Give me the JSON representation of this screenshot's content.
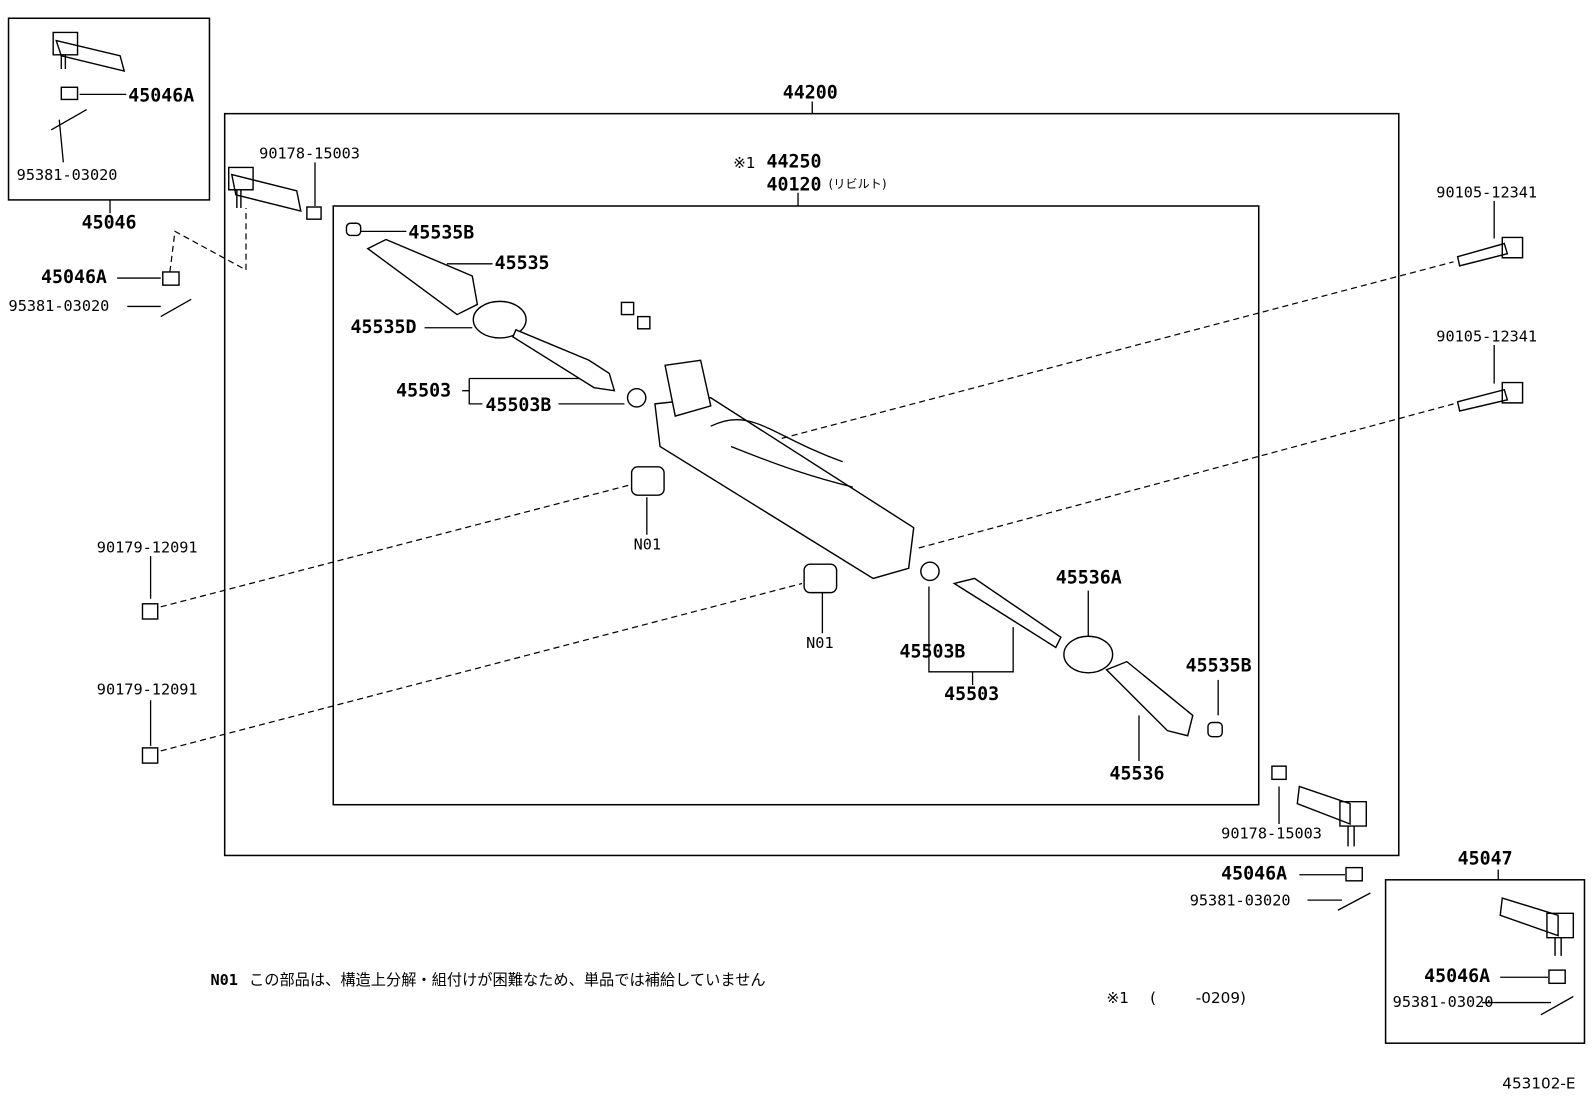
{
  "callouts": [
    "45046A",
    "95381-03020",
    "45046",
    "45046A",
    "95381-03020",
    "44200",
    "90178-15003",
    "※1",
    "44250",
    "40120",
    "(リビルト)",
    "45535B",
    "45535",
    "45535D",
    "45503",
    "45503B",
    "90105-12341",
    "90105-12341",
    "90179-12091",
    "N01",
    "90179-12091",
    "N01",
    "45536A",
    "45503B",
    "45503",
    "45535B",
    "45536",
    "90178-15003",
    "45047",
    "45046A",
    "95381-03020",
    "45046A",
    "95381-03020"
  ],
  "note": {
    "marker": "N01",
    "text": "この部品は、構造上分解・組付けが困難なため、単品では補給していません"
  },
  "footnote": {
    "marker": "※1",
    "open": "(",
    "range": "-0209)"
  },
  "diagram_id": "453102-E"
}
